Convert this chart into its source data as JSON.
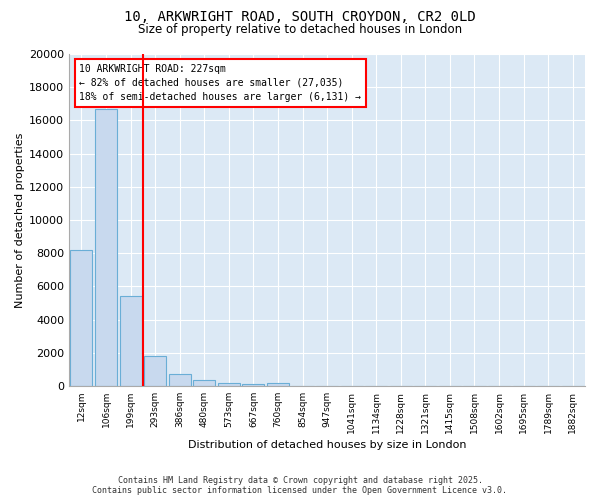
{
  "title1": "10, ARKWRIGHT ROAD, SOUTH CROYDON, CR2 0LD",
  "title2": "Size of property relative to detached houses in London",
  "xlabel": "Distribution of detached houses by size in London",
  "ylabel": "Number of detached properties",
  "categories": [
    "12sqm",
    "106sqm",
    "199sqm",
    "293sqm",
    "386sqm",
    "480sqm",
    "573sqm",
    "667sqm",
    "760sqm",
    "854sqm",
    "947sqm",
    "1041sqm",
    "1134sqm",
    "1228sqm",
    "1321sqm",
    "1415sqm",
    "1508sqm",
    "1602sqm",
    "1695sqm",
    "1789sqm",
    "1882sqm"
  ],
  "bar_heights": [
    8200,
    16700,
    5400,
    1800,
    700,
    350,
    200,
    100,
    200,
    0,
    0,
    0,
    0,
    0,
    0,
    0,
    0,
    0,
    0,
    0,
    0
  ],
  "bar_color": "#c8d9ee",
  "bar_edge_color": "#6aaed6",
  "red_line_x": 2.5,
  "annotation_title": "10 ARKWRIGHT ROAD: 227sqm",
  "annotation_line1": "← 82% of detached houses are smaller (27,035)",
  "annotation_line2": "18% of semi-detached houses are larger (6,131) →",
  "ylim": [
    0,
    20000
  ],
  "yticks": [
    0,
    2000,
    4000,
    6000,
    8000,
    10000,
    12000,
    14000,
    16000,
    18000,
    20000
  ],
  "footer1": "Contains HM Land Registry data © Crown copyright and database right 2025.",
  "footer2": "Contains public sector information licensed under the Open Government Licence v3.0.",
  "bg_color": "#ffffff",
  "plot_bg_color": "#dce9f5"
}
